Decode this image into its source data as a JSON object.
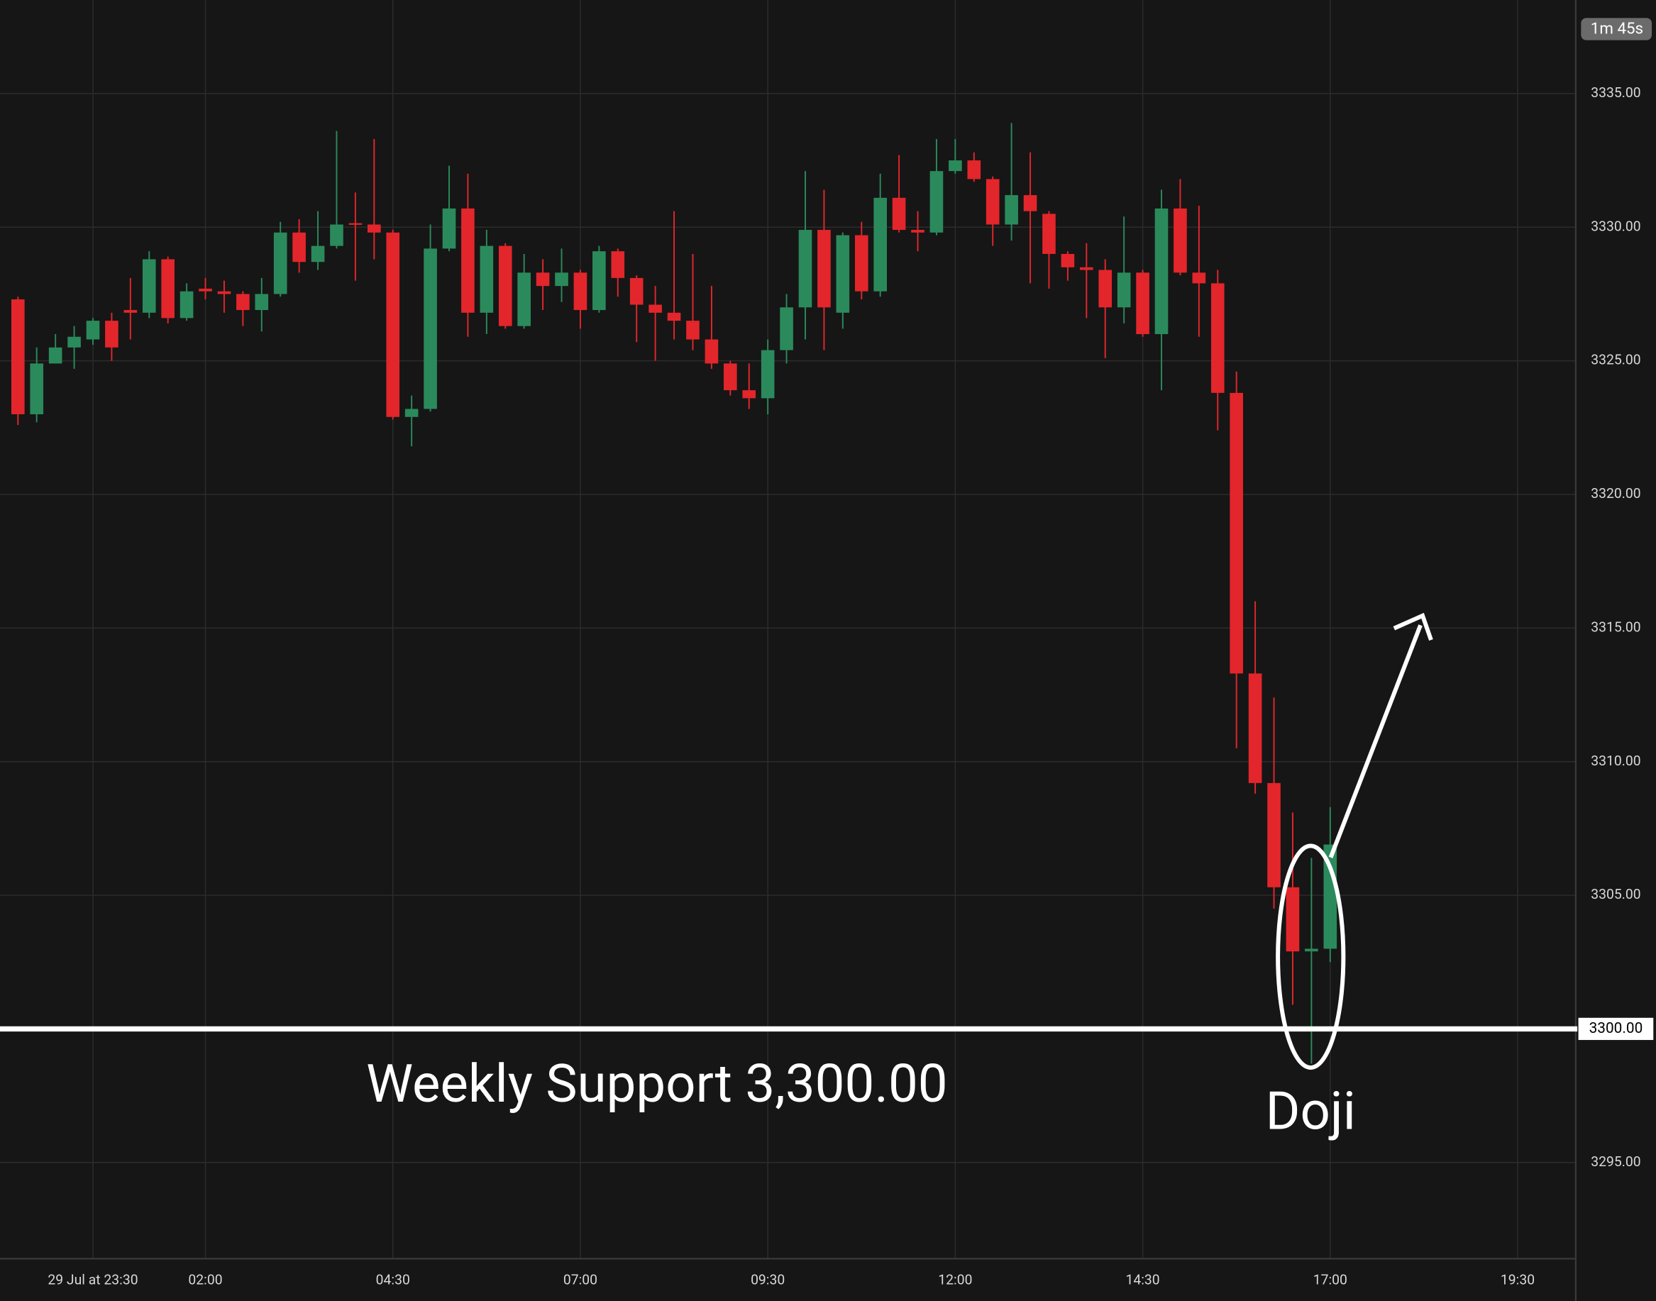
{
  "chart_data": {
    "type": "candlestick",
    "categories": [
      null,
      null,
      null,
      null,
      "29 Jul at 23:30",
      null,
      null,
      null,
      null,
      null,
      "02:00",
      null,
      null,
      null,
      null,
      null,
      null,
      null,
      null,
      null,
      "04:30",
      null,
      null,
      null,
      null,
      null,
      null,
      null,
      null,
      null,
      "07:00",
      null,
      null,
      null,
      null,
      null,
      null,
      null,
      null,
      null,
      "09:30",
      null,
      null,
      null,
      null,
      null,
      null,
      null,
      null,
      null,
      "12:00",
      null,
      null,
      null,
      null,
      null,
      null,
      null,
      null,
      null,
      "14:30",
      null,
      null,
      null,
      null,
      null,
      null,
      null,
      null,
      null,
      "17:00",
      null,
      null,
      null,
      null,
      null,
      null,
      null,
      null,
      null,
      "19:30",
      null,
      null,
      null
    ],
    "open": [
      3327.3,
      3323.0,
      3324.9,
      3325.5,
      3325.8,
      3326.5,
      3326.9,
      3326.8,
      3328.8,
      3326.6,
      3327.7,
      3327.6,
      3327.5,
      3326.9,
      3327.5,
      3329.8,
      3328.7,
      3329.3,
      3330.15,
      3330.1,
      3329.8,
      3322.9,
      3323.2,
      3329.2,
      3330.7,
      3326.8,
      3329.3,
      3326.3,
      3328.3,
      3327.8,
      3328.3,
      3326.9,
      3329.1,
      3328.1,
      3327.1,
      3326.8,
      3326.5,
      3325.8,
      3324.9,
      3323.9,
      3323.6,
      3325.4,
      3327.0,
      3329.9,
      3326.8,
      3329.7,
      3327.6,
      3331.1,
      3329.9,
      3329.8,
      3332.1,
      3332.5,
      3331.8,
      3330.1,
      3331.2,
      3330.5,
      3329.0,
      3328.5,
      3328.4,
      3327.0,
      3328.3,
      3326.0,
      3330.7,
      3328.3,
      3327.9,
      3323.8,
      3313.3,
      3309.2,
      3305.3,
      3302.9,
      3303.0,
      null,
      null,
      null,
      null,
      null,
      null,
      null,
      null,
      null,
      null,
      null,
      null,
      null
    ],
    "high": [
      3327.4,
      3325.5,
      3326.0,
      3326.3,
      3326.6,
      3326.8,
      3328.1,
      3329.1,
      3328.9,
      3327.9,
      3328.1,
      3328.0,
      3327.6,
      3328.1,
      3330.2,
      3330.3,
      3330.6,
      3333.6,
      3331.3,
      3333.3,
      3329.9,
      3323.7,
      3330.1,
      3332.3,
      3332.0,
      3329.9,
      3329.4,
      3329.0,
      3328.8,
      3329.2,
      3328.4,
      3329.3,
      3329.2,
      3328.2,
      3327.8,
      3330.6,
      3329.0,
      3327.8,
      3325.0,
      3324.9,
      3325.8,
      3327.5,
      3332.1,
      3331.4,
      3329.8,
      3330.2,
      3332.0,
      3332.7,
      3330.6,
      3333.3,
      3333.3,
      3332.8,
      3331.9,
      3333.9,
      3332.8,
      3330.6,
      3329.1,
      3329.4,
      3328.8,
      3330.4,
      3328.4,
      3331.4,
      3331.8,
      3330.8,
      3328.4,
      3324.6,
      3316.0,
      3312.4,
      3308.1,
      3306.4,
      3308.3,
      null,
      null,
      null,
      null,
      null,
      null,
      null,
      null,
      null,
      null,
      null,
      null,
      null
    ],
    "low": [
      3322.6,
      3322.7,
      3324.9,
      3324.7,
      3325.6,
      3325.0,
      3325.8,
      3326.6,
      3326.4,
      3326.5,
      3327.3,
      3326.8,
      3326.3,
      3326.1,
      3327.4,
      3328.3,
      3328.4,
      3329.2,
      3328.0,
      3328.8,
      3322.8,
      3321.8,
      3323.1,
      3329.1,
      3325.9,
      3326.0,
      3326.2,
      3326.2,
      3326.9,
      3327.2,
      3326.2,
      3326.8,
      3327.4,
      3325.7,
      3325.0,
      3325.8,
      3325.4,
      3324.7,
      3323.7,
      3323.2,
      3323.0,
      3324.9,
      3325.8,
      3325.4,
      3326.2,
      3327.3,
      3327.4,
      3329.8,
      3329.1,
      3329.7,
      3332.0,
      3331.7,
      3329.3,
      3329.5,
      3327.9,
      3327.7,
      3328.0,
      3326.6,
      3325.1,
      3326.4,
      3325.9,
      3323.9,
      3328.2,
      3325.9,
      3322.4,
      3310.5,
      3308.8,
      3304.5,
      3300.9,
      3298.7,
      3302.5,
      null,
      null,
      null,
      null,
      null,
      null,
      null,
      null,
      null,
      null,
      null,
      null,
      null
    ],
    "close": [
      3323.0,
      3324.9,
      3325.5,
      3325.9,
      3326.5,
      3325.5,
      3326.8,
      3328.8,
      3326.6,
      3327.6,
      3327.6,
      3327.5,
      3326.9,
      3327.5,
      3329.8,
      3328.7,
      3329.3,
      3330.1,
      3330.1,
      3329.8,
      3322.9,
      3323.2,
      3329.2,
      3330.7,
      3326.8,
      3329.3,
      3326.3,
      3328.3,
      3327.8,
      3328.3,
      3326.9,
      3329.1,
      3328.1,
      3327.1,
      3326.8,
      3326.5,
      3325.8,
      3324.9,
      3323.9,
      3323.6,
      3325.4,
      3327.0,
      3329.9,
      3327.0,
      3329.7,
      3327.6,
      3331.1,
      3329.9,
      3329.8,
      3332.1,
      3332.5,
      3331.8,
      3330.1,
      3331.2,
      3330.6,
      3329.0,
      3328.5,
      3328.4,
      3327.0,
      3328.3,
      3326.0,
      3330.7,
      3328.3,
      3327.9,
      3323.8,
      3313.3,
      3309.2,
      3305.3,
      3302.9,
      3303.0,
      3306.9,
      null,
      null,
      null,
      null,
      null,
      null,
      null,
      null,
      null,
      null,
      null,
      null,
      null
    ],
    "up_color": "#2b8a5b",
    "down_color": "#e3262b",
    "ylim": [
      3291.4,
      3338.5
    ],
    "yticks": [
      {
        "value": 3295,
        "label": "3295.00"
      },
      {
        "value": 3305,
        "label": "3305.00"
      },
      {
        "value": 3310,
        "label": "3310.00"
      },
      {
        "value": 3315,
        "label": "3315.00"
      },
      {
        "value": 3320,
        "label": "3320.00"
      },
      {
        "value": 3325,
        "label": "3325.00"
      },
      {
        "value": 3330,
        "label": "3330.00"
      },
      {
        "value": 3335,
        "label": "3335.00"
      }
    ],
    "grid": true,
    "support": {
      "value": 3300,
      "label": "3300.00",
      "text": "Weekly Support 3,300.00"
    },
    "annotation": "Doji",
    "timer": "1m 45s"
  }
}
